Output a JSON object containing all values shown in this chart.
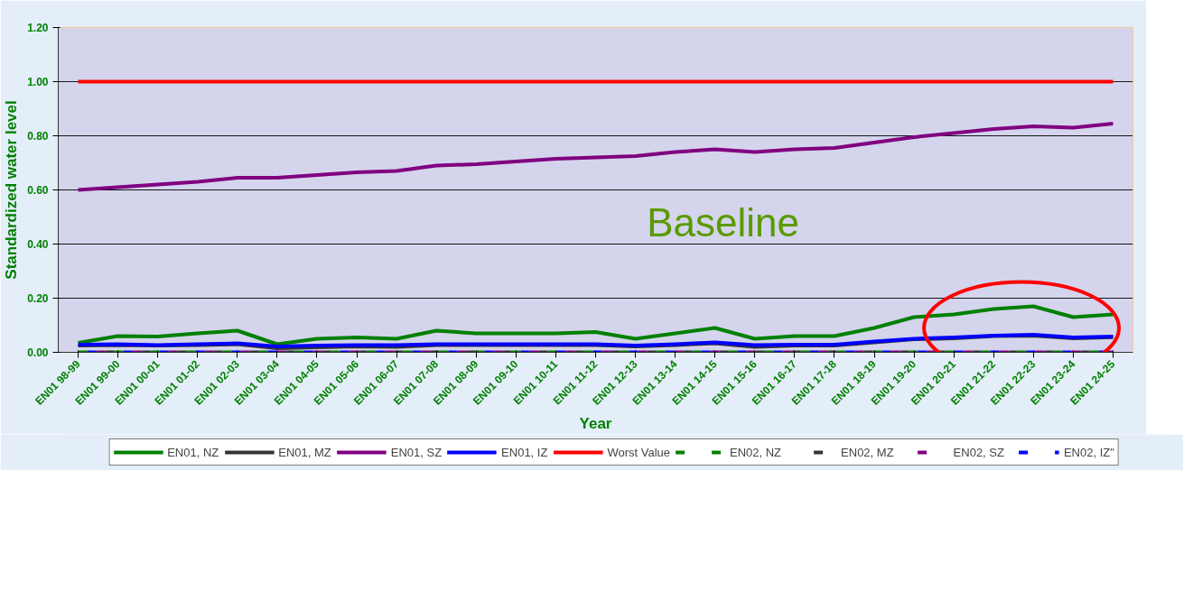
{
  "chart_data": {
    "type": "line",
    "xlabel": "Year",
    "ylabel": "Standardized water level",
    "annotations": [
      "Baseline"
    ],
    "categories": [
      "EN01 98-99",
      "EN01 99-00",
      "EN01 00-01",
      "EN01 01-02",
      "EN01 02-03",
      "EN01 03-04",
      "EN01 04-05",
      "EN01 05-06",
      "EN01 06-07",
      "EN01 07-08",
      "EN01 08-09",
      "EN01 09-10",
      "EN01 10-11",
      "EN01 11-12",
      "EN01 12-13",
      "EN01 13-14",
      "EN01 14-15",
      "EN01 15-16",
      "EN01 16-17",
      "EN01 17-18",
      "EN01 18-19",
      "EN01 19-20",
      "EN01 20-21",
      "EN01 21-22",
      "EN01 22-23",
      "EN01 23-24",
      "EN01 24-25"
    ],
    "ylim": [
      0,
      1.2
    ],
    "yticks": [
      {
        "value": 0,
        "label": "0.00"
      },
      {
        "value": 0.2,
        "label": "0.20"
      },
      {
        "value": 0.4,
        "label": "0.40"
      },
      {
        "value": 0.6,
        "label": "0.60"
      },
      {
        "value": 0.8,
        "label": "0.80"
      },
      {
        "value": 1.0,
        "label": "1.00"
      },
      {
        "value": 1.2,
        "label": "1.20"
      }
    ],
    "grid": "y",
    "legend": "bottom",
    "marker": "none",
    "series": [
      {
        "name": "EN01, NZ",
        "color": "#008000",
        "line_style": "solid",
        "values": [
          0.035,
          0.06,
          0.058,
          0.07,
          0.08,
          0.03,
          0.05,
          0.055,
          0.05,
          0.08,
          0.07,
          0.07,
          0.07,
          0.075,
          0.05,
          0.07,
          0.09,
          0.05,
          0.06,
          0.06,
          0.09,
          0.13,
          0.14,
          0.16,
          0.17,
          0.13,
          0.14
        ]
      },
      {
        "name": "EN01, MZ",
        "color": "#333333",
        "line_style": "solid",
        "values": [
          0.025,
          0.027,
          0.025,
          0.027,
          0.03,
          0.015,
          0.018,
          0.022,
          0.02,
          0.027,
          0.027,
          0.027,
          0.027,
          0.027,
          0.022,
          0.027,
          0.033,
          0.02,
          0.025,
          0.025,
          0.037,
          0.048,
          0.052,
          0.06,
          0.062,
          0.052,
          0.056
        ]
      },
      {
        "name": "EN01, SZ",
        "color": "#800080",
        "line_style": "solid",
        "values": [
          0.6,
          0.61,
          0.62,
          0.63,
          0.645,
          0.645,
          0.655,
          0.665,
          0.67,
          0.69,
          0.695,
          0.705,
          0.715,
          0.72,
          0.725,
          0.74,
          0.75,
          0.74,
          0.75,
          0.755,
          0.775,
          0.795,
          0.81,
          0.825,
          0.835,
          0.83,
          0.845
        ]
      },
      {
        "name": "EN01, IZ",
        "color": "#0000ff",
        "line_style": "solid",
        "values": [
          0.028,
          0.03,
          0.027,
          0.03,
          0.033,
          0.022,
          0.025,
          0.027,
          0.027,
          0.03,
          0.03,
          0.03,
          0.03,
          0.03,
          0.025,
          0.03,
          0.037,
          0.027,
          0.028,
          0.028,
          0.04,
          0.05,
          0.055,
          0.062,
          0.065,
          0.055,
          0.058
        ]
      },
      {
        "name": "Worst Value",
        "color": "#ff0000",
        "line_style": "solid",
        "values": [
          1,
          1,
          1,
          1,
          1,
          1,
          1,
          1,
          1,
          1,
          1,
          1,
          1,
          1,
          1,
          1,
          1,
          1,
          1,
          1,
          1,
          1,
          1,
          1,
          1,
          1,
          1
        ]
      },
      {
        "name": "EN02, NZ",
        "color": "#008000",
        "line_style": "dashed",
        "values": [
          0,
          0,
          0,
          0,
          0,
          0,
          0,
          0,
          0,
          0,
          0,
          0,
          0,
          0,
          0,
          0,
          0,
          0,
          0,
          0,
          0,
          0,
          0,
          0,
          0,
          0,
          0
        ]
      },
      {
        "name": "EN02, MZ",
        "color": "#333333",
        "line_style": "dashed",
        "values": [
          0,
          0,
          0,
          0,
          0,
          0,
          0,
          0,
          0,
          0,
          0,
          0,
          0,
          0,
          0,
          0,
          0,
          0,
          0,
          0,
          0,
          0,
          0,
          0,
          0,
          0,
          0
        ]
      },
      {
        "name": "EN02, SZ",
        "color": "#800080",
        "line_style": "dashed",
        "values": [
          0,
          0,
          0,
          0,
          0,
          0,
          0,
          0,
          0,
          0,
          0,
          0,
          0,
          0,
          0,
          0,
          0,
          0,
          0,
          0,
          0,
          0,
          0,
          0,
          0,
          0,
          0
        ]
      },
      {
        "name": "EN02, IZ\"",
        "color": "#0000ff",
        "line_style": "dashed",
        "values": [
          0,
          0,
          0,
          0,
          0,
          0,
          0,
          0,
          0,
          0,
          0,
          0,
          0,
          0,
          0,
          0,
          0,
          0,
          0,
          0,
          0,
          0,
          0,
          0,
          0,
          0,
          0
        ]
      }
    ]
  }
}
